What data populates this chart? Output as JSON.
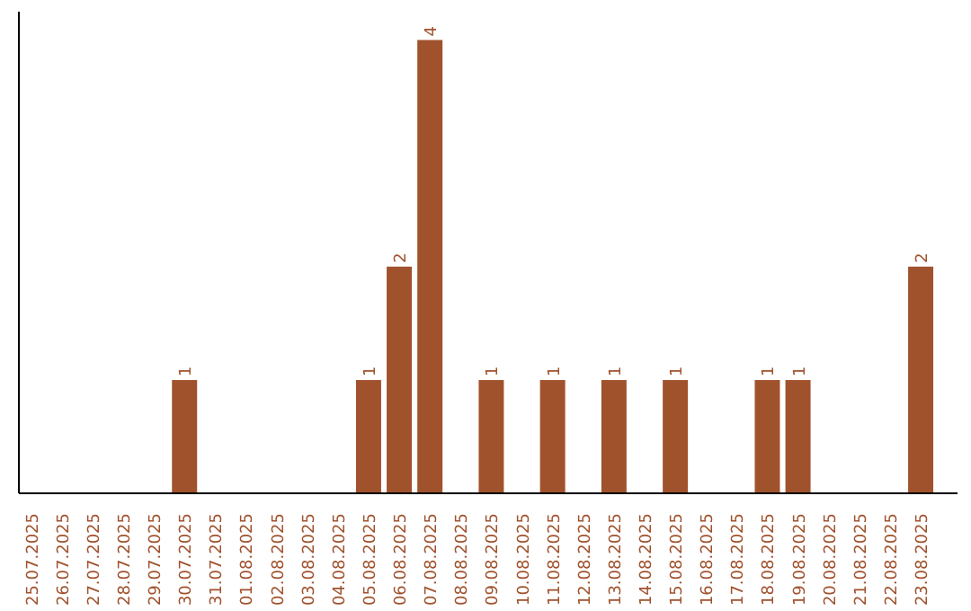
{
  "chart_data": {
    "type": "bar",
    "categories": [
      "25.07.2025",
      "26.07.2025",
      "27.07.2025",
      "28.07.2025",
      "29.07.2025",
      "30.07.2025",
      "31.07.2025",
      "01.08.2025",
      "02.08.2025",
      "03.08.2025",
      "04.08.2025",
      "05.08.2025",
      "06.08.2025",
      "07.08.2025",
      "08.08.2025",
      "09.08.2025",
      "10.08.2025",
      "11.08.2025",
      "12.08.2025",
      "13.08.2025",
      "14.08.2025",
      "15.08.2025",
      "16.08.2025",
      "17.08.2025",
      "18.08.2025",
      "19.08.2025",
      "20.08.2025",
      "21.08.2025",
      "22.08.2025",
      "23.08.2025"
    ],
    "values": [
      0,
      0,
      0,
      0,
      0,
      1,
      0,
      0,
      0,
      0,
      0,
      1,
      2,
      4,
      0,
      1,
      0,
      1,
      0,
      1,
      0,
      1,
      0,
      0,
      1,
      1,
      0,
      0,
      0,
      2
    ],
    "value_labels": [
      null,
      null,
      null,
      null,
      null,
      "1",
      null,
      null,
      null,
      null,
      null,
      "1",
      "2",
      "4",
      null,
      "1",
      null,
      "1",
      null,
      "1",
      null,
      "1",
      null,
      null,
      "1",
      "1",
      null,
      null,
      null,
      "2"
    ],
    "color": "#a0522d",
    "ylim": [
      0,
      4.25
    ],
    "grid": false,
    "tick_labels": "x"
  }
}
